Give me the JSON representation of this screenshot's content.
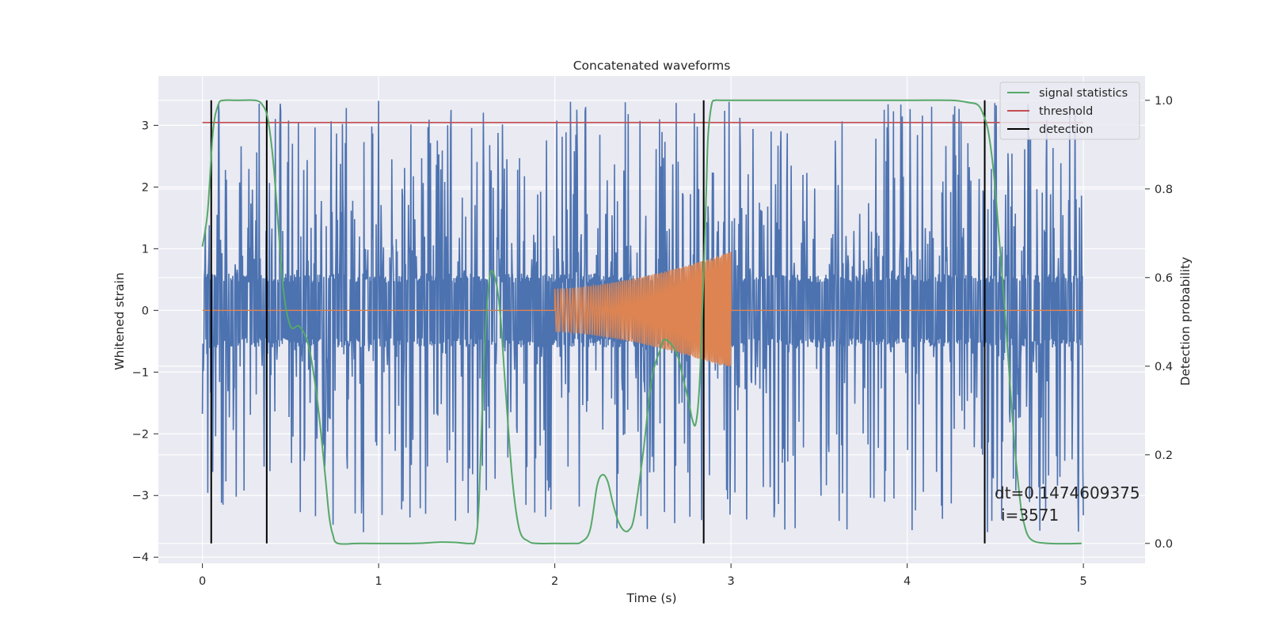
{
  "chart_data": {
    "type": "line",
    "title": "Concatenated waveforms",
    "xlabel": "Time (s)",
    "ylabel": "Whitened strain",
    "ylabel_right": "Detection probability",
    "xlim": [
      -0.25,
      5.35
    ],
    "ylim": [
      -4.1,
      3.8
    ],
    "ylim_right": [
      -0.045,
      1.055
    ],
    "xticks": [
      "0",
      "1",
      "2",
      "3",
      "4",
      "5"
    ],
    "yticks": [
      "−4",
      "−3",
      "−2",
      "−1",
      "0",
      "1",
      "2",
      "3"
    ],
    "yticks_right": [
      "0.0",
      "0.2",
      "0.4",
      "0.6",
      "0.8",
      "1.0"
    ],
    "grid": true,
    "legend_position": "top-right",
    "legend": [
      "signal statistics",
      "threshold",
      "detection"
    ],
    "colors": {
      "strain": "#4c72b0",
      "template": "#dd8452",
      "signal_statistics": "#55a868",
      "threshold": "#c44e52",
      "detection": "#000000",
      "background": "#eaeaf2"
    },
    "series": [
      {
        "name": "signal statistics",
        "axis": "right",
        "x": [
          0.0,
          0.03,
          0.06,
          0.09,
          0.12,
          0.2,
          0.3,
          0.34,
          0.37,
          0.4,
          0.43,
          0.46,
          0.5,
          0.55,
          0.6,
          0.64,
          0.67,
          0.7,
          0.72,
          0.74,
          0.77,
          0.9,
          1.2,
          1.35,
          1.45,
          1.52,
          1.55,
          1.57,
          1.6,
          1.63,
          1.66,
          1.69,
          1.72,
          1.76,
          1.8,
          1.85,
          1.9,
          2.0,
          2.1,
          2.15,
          2.2,
          2.24,
          2.27,
          2.3,
          2.33,
          2.36,
          2.39,
          2.42,
          2.45,
          2.5,
          2.55,
          2.6,
          2.62,
          2.66,
          2.7,
          2.73,
          2.76,
          2.78,
          2.8,
          2.82,
          2.84,
          2.86,
          2.87,
          2.89,
          2.91,
          2.95,
          3.2,
          3.6,
          4.0,
          4.25,
          4.35,
          4.4,
          4.43,
          4.46,
          4.49,
          4.52,
          4.55,
          4.58,
          4.61,
          4.64,
          4.66,
          4.7,
          4.8,
          4.99
        ],
        "y": [
          0.67,
          0.75,
          0.93,
          0.99,
          1.0,
          1.0,
          1.0,
          0.99,
          0.96,
          0.87,
          0.72,
          0.57,
          0.49,
          0.49,
          0.45,
          0.36,
          0.26,
          0.14,
          0.06,
          0.02,
          0.0,
          0.0,
          0.0,
          0.003,
          0.002,
          0.0,
          0.01,
          0.1,
          0.43,
          0.6,
          0.6,
          0.52,
          0.35,
          0.14,
          0.03,
          0.005,
          0.0,
          0.0,
          0.0,
          0.003,
          0.03,
          0.13,
          0.155,
          0.14,
          0.09,
          0.05,
          0.03,
          0.03,
          0.06,
          0.2,
          0.37,
          0.44,
          0.46,
          0.45,
          0.42,
          0.37,
          0.32,
          0.28,
          0.27,
          0.35,
          0.55,
          0.8,
          0.92,
          0.99,
          1.0,
          1.0,
          1.0,
          1.0,
          1.0,
          1.0,
          0.995,
          0.99,
          0.97,
          0.93,
          0.84,
          0.7,
          0.55,
          0.38,
          0.22,
          0.1,
          0.05,
          0.01,
          0.0,
          0.0
        ]
      },
      {
        "name": "threshold",
        "axis": "right",
        "x": [
          0.0,
          5.0
        ],
        "y": [
          0.95,
          0.95
        ]
      }
    ],
    "strain_noise": {
      "axis": "left",
      "x_range": [
        0.0,
        5.0
      ],
      "core_band": [
        -0.6,
        0.6
      ],
      "extreme_range": [
        -3.7,
        3.5
      ],
      "samples": 1800
    },
    "template_chirp": {
      "axis": "left",
      "x": [
        0.0,
        2.0,
        3.0,
        5.0
      ],
      "y_envelope_start": [
        -0.35,
        0.35
      ],
      "y_envelope_end": [
        -0.95,
        0.95
      ],
      "baseline": 0.0
    },
    "detections": {
      "axis": "right",
      "x": [
        0.05,
        0.365,
        2.845,
        4.44
      ],
      "ymin": 0.0,
      "ymax": 1.0
    },
    "annotations": {
      "dt_text": "dt=0.1474609375",
      "i_text": "i=3571"
    }
  }
}
